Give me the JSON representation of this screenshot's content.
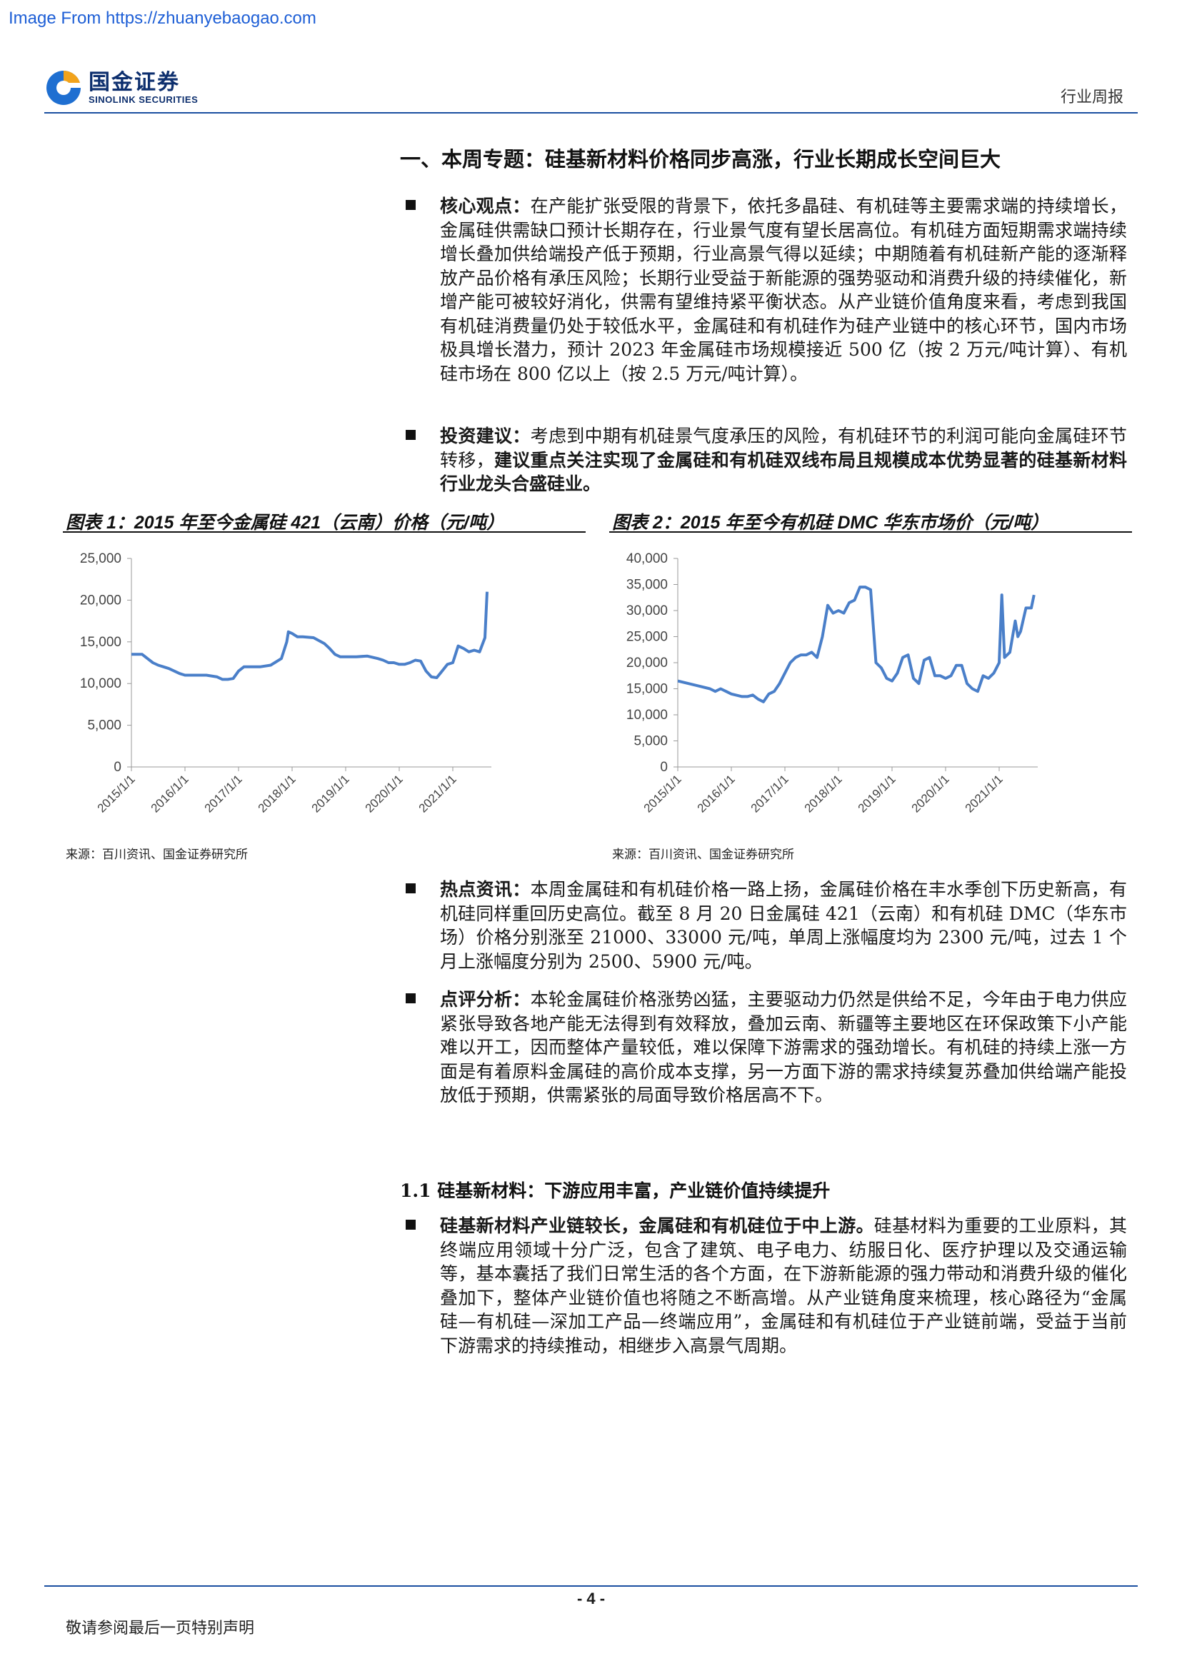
{
  "watermark": "Image From https://zhuanyebaogao.com",
  "header": {
    "logo_cn": "国金证券",
    "logo_en": "SINOLINK SECURITIES",
    "doc_type": "行业周报"
  },
  "section_title": "一、本周专题：硅基新材料价格同步高涨，行业长期成长空间巨大",
  "bullets_top": [
    {
      "label": "核心观点：",
      "text": "在产能扩张受限的背景下，依托多晶硅、有机硅等主要需求端的持续增长，金属硅供需缺口预计长期存在，行业景气度有望长居高位。有机硅方面短期需求端持续增长叠加供给端投产低于预期，行业高景气得以延续；中期随着有机硅新产能的逐渐释放产品价格有承压风险；长期行业受益于新能源的强势驱动和消费升级的持续催化，新增产能可被较好消化，供需有望维持紧平衡状态。从产业链价值角度来看，考虑到我国有机硅消费量仍处于较低水平，金属硅和有机硅作为硅产业链中的核心环节，国内市场极具增长潜力，预计 2023 年金属硅市场规模接近 500 亿（按 2 万元/吨计算）、有机硅市场在 800 亿以上（按 2.5 万元/吨计算）。",
      "bold_tail": ""
    },
    {
      "label": "投资建议：",
      "text": "考虑到中期有机硅景气度承压的风险，有机硅环节的利润可能向金属硅环节转移，",
      "bold_tail": "建议重点关注实现了金属硅和有机硅双线布局且规模成本优势显著的硅基新材料行业龙头合盛硅业。"
    }
  ],
  "figures": [
    {
      "title": "图表 1：2015 年至今金属硅 421（云南）价格（元/吨）",
      "source": "来源：百川资讯、国金证券研究所",
      "chart_data": {
        "type": "line",
        "title": "",
        "ylim": [
          0,
          25000
        ],
        "yticks": [
          "0",
          "5,000",
          "10,000",
          "15,000",
          "20,000",
          "25,000"
        ],
        "ytick_values": [
          0,
          5000,
          10000,
          15000,
          20000,
          25000
        ],
        "xticks": [
          "2015/1/1",
          "2016/1/1",
          "2017/1/1",
          "2018/1/1",
          "2019/1/1",
          "2020/1/1",
          "2021/1/1"
        ],
        "xlim": [
          2015.0,
          2021.72
        ],
        "line_color": "#4a7fc9",
        "grid": false,
        "x": [
          2015.0,
          2015.2,
          2015.3,
          2015.4,
          2015.5,
          2015.6,
          2015.7,
          2015.8,
          2015.9,
          2016.0,
          2016.2,
          2016.4,
          2016.6,
          2016.7,
          2016.8,
          2016.9,
          2017.0,
          2017.1,
          2017.2,
          2017.4,
          2017.6,
          2017.8,
          2017.9,
          2017.93,
          2018.0,
          2018.1,
          2018.2,
          2018.4,
          2018.6,
          2018.7,
          2018.8,
          2018.9,
          2019.0,
          2019.2,
          2019.4,
          2019.6,
          2019.7,
          2019.8,
          2019.9,
          2020.0,
          2020.1,
          2020.2,
          2020.3,
          2020.4,
          2020.5,
          2020.6,
          2020.7,
          2020.8,
          2020.9,
          2021.0,
          2021.1,
          2021.2,
          2021.3,
          2021.4,
          2021.5,
          2021.6,
          2021.64
        ],
        "y": [
          13500,
          13500,
          13000,
          12500,
          12200,
          12000,
          11800,
          11500,
          11200,
          11000,
          11000,
          11000,
          10800,
          10500,
          10500,
          10600,
          11500,
          12000,
          12000,
          12000,
          12200,
          13000,
          15000,
          16200,
          16000,
          15600,
          15600,
          15500,
          14800,
          14200,
          13500,
          13200,
          13200,
          13200,
          13300,
          13000,
          12800,
          12500,
          12500,
          12300,
          12300,
          12500,
          12800,
          12700,
          11500,
          10800,
          10700,
          11500,
          12300,
          12500,
          14500,
          14200,
          13800,
          14000,
          13800,
          15500,
          21000
        ]
      }
    },
    {
      "title": "图表 2：2015 年至今有机硅 DMC 华东市场价（元/吨）",
      "source": "来源：百川资讯、国金证券研究所",
      "chart_data": {
        "type": "line",
        "title": "",
        "ylim": [
          0,
          40000
        ],
        "yticks": [
          "0",
          "5,000",
          "10,000",
          "15,000",
          "20,000",
          "25,000",
          "30,000",
          "35,000",
          "40,000"
        ],
        "ytick_values": [
          0,
          5000,
          10000,
          15000,
          20000,
          25000,
          30000,
          35000,
          40000
        ],
        "xticks": [
          "2015/1/1",
          "2016/1/1",
          "2017/1/1",
          "2018/1/1",
          "2019/1/1",
          "2020/1/1",
          "2021/1/1"
        ],
        "xlim": [
          2015.0,
          2021.72
        ],
        "line_color": "#4a7fc9",
        "grid": false,
        "x": [
          2015.0,
          2015.2,
          2015.4,
          2015.6,
          2015.7,
          2015.8,
          2016.0,
          2016.2,
          2016.3,
          2016.4,
          2016.5,
          2016.6,
          2016.7,
          2016.8,
          2016.9,
          2017.0,
          2017.1,
          2017.2,
          2017.3,
          2017.4,
          2017.5,
          2017.6,
          2017.7,
          2017.8,
          2017.9,
          2018.0,
          2018.1,
          2018.2,
          2018.3,
          2018.4,
          2018.5,
          2018.6,
          2018.7,
          2018.8,
          2018.9,
          2019.0,
          2019.1,
          2019.2,
          2019.3,
          2019.4,
          2019.5,
          2019.6,
          2019.7,
          2019.8,
          2019.9,
          2020.0,
          2020.1,
          2020.2,
          2020.3,
          2020.4,
          2020.5,
          2020.6,
          2020.7,
          2020.8,
          2020.9,
          2021.0,
          2021.05,
          2021.1,
          2021.2,
          2021.3,
          2021.35,
          2021.4,
          2021.5,
          2021.6,
          2021.65
        ],
        "y": [
          16500,
          16000,
          15500,
          15000,
          14500,
          15000,
          14000,
          13500,
          13500,
          13800,
          13000,
          12500,
          14000,
          14500,
          16000,
          18000,
          20000,
          21000,
          21500,
          21500,
          22000,
          21000,
          25000,
          31000,
          29500,
          30000,
          29500,
          31500,
          32000,
          34500,
          34500,
          34000,
          20000,
          19000,
          17000,
          16500,
          18000,
          21000,
          21500,
          17000,
          16000,
          20500,
          21000,
          17500,
          17500,
          17000,
          17500,
          19500,
          19500,
          16000,
          15000,
          14500,
          17500,
          17000,
          18000,
          20000,
          33000,
          21000,
          22000,
          28000,
          25000,
          26000,
          30500,
          30500,
          33000
        ]
      }
    }
  ],
  "bullets_mid": [
    {
      "label": "热点资讯：",
      "text": "本周金属硅和有机硅价格一路上扬，金属硅价格在丰水季创下历史新高，有机硅同样重回历史高位。截至 8 月 20 日金属硅 421（云南）和有机硅 DMC（华东市场）价格分别涨至 21000、33000 元/吨，单周上涨幅度均为 2300 元/吨，过去 1 个月上涨幅度分别为 2500、5900 元/吨。"
    },
    {
      "label": "点评分析：",
      "text": "本轮金属硅价格涨势凶猛，主要驱动力仍然是供给不足，今年由于电力供应紧张导致各地产能无法得到有效释放，叠加云南、新疆等主要地区在环保政策下小产能难以开工，因而整体产量较低，难以保障下游需求的强劲增长。有机硅的持续上涨一方面是有着原料金属硅的高价成本支撑，另一方面下游的需求持续复苏叠加供给端产能投放低于预期，供需紧张的局面导致价格居高不下。"
    }
  ],
  "subsection_title": "1.1 硅基新材料：下游应用丰富，产业链价值持续提升",
  "bullets_bottom": [
    {
      "label": "硅基新材料产业链较长，金属硅和有机硅位于中上游。",
      "text": "硅基材料为重要的工业原料，其终端应用领域十分广泛，包含了建筑、电子电力、纺服日化、医疗护理以及交通运输等，基本囊括了我们日常生活的各个方面，在下游新能源的强力带动和消费升级的催化叠加下，整体产业链价值也将随之不断高增。从产业链角度来梳理，核心路径为“金属硅—有机硅—深加工产品—终端应用”，金属硅和有机硅位于产业链前端，受益于当前下游需求的持续推动，相继步入高景气周期。"
    }
  ],
  "footer": {
    "page_number": "- 4 -",
    "disclaimer": "敬请参阅最后一页特别声明"
  }
}
